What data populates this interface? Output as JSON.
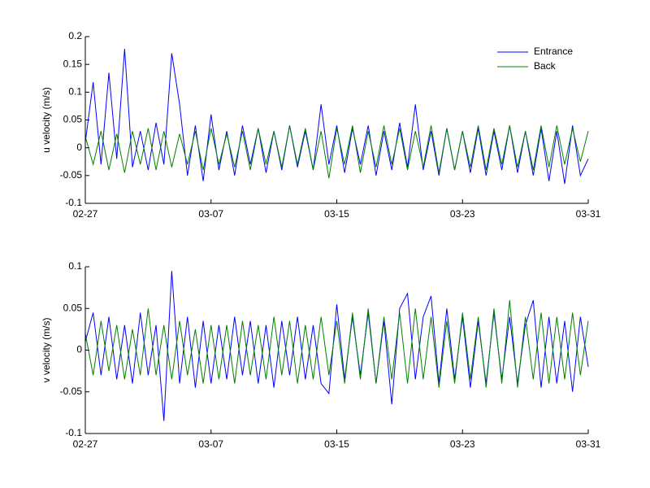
{
  "chart_data": [
    {
      "type": "line",
      "ylabel": "u velocity (m/s)",
      "x": [
        0,
        0.5,
        1,
        1.5,
        2,
        2.5,
        3,
        3.5,
        4,
        4.5,
        5,
        5.5,
        6,
        6.5,
        7,
        7.5,
        8,
        8.5,
        9,
        9.5,
        10,
        10.5,
        11,
        11.5,
        12,
        12.5,
        13,
        13.5,
        14,
        14.5,
        15,
        15.5,
        16,
        16.5,
        17,
        17.5,
        18,
        18.5,
        19,
        19.5,
        20,
        20.5,
        21,
        21.5,
        22,
        22.5,
        23,
        23.5,
        24,
        24.5,
        25,
        25.5,
        26,
        26.5,
        27,
        27.5,
        28,
        28.5,
        29,
        29.5,
        30,
        30.5,
        31,
        31.5,
        32
      ],
      "xlim": [
        0,
        32
      ],
      "xticks": [
        {
          "value": 0,
          "label": "02-27"
        },
        {
          "value": 8,
          "label": "03-07"
        },
        {
          "value": 16,
          "label": "03-15"
        },
        {
          "value": 24,
          "label": "03-23"
        },
        {
          "value": 32,
          "label": "03-31"
        }
      ],
      "ylim": [
        -0.1,
        0.2
      ],
      "yticks": [
        -0.1,
        -0.05,
        0,
        0.05,
        0.1,
        0.15,
        0.2
      ],
      "legend": "upper right",
      "series": [
        {
          "name": "Entrance",
          "color": "#0000ff",
          "values": [
            0.01,
            0.118,
            -0.03,
            0.135,
            -0.02,
            0.178,
            -0.035,
            0.03,
            -0.04,
            0.045,
            -0.03,
            0.17,
            0.078,
            -0.05,
            0.04,
            -0.06,
            0.06,
            -0.04,
            0.03,
            -0.05,
            0.04,
            -0.03,
            0.035,
            -0.045,
            0.03,
            -0.04,
            0.04,
            -0.035,
            0.03,
            -0.04,
            0.078,
            -0.03,
            0.04,
            -0.045,
            0.035,
            -0.03,
            0.04,
            -0.05,
            0.03,
            -0.04,
            0.045,
            -0.035,
            0.078,
            -0.04,
            0.03,
            -0.05,
            0.035,
            -0.04,
            0.03,
            -0.045,
            0.035,
            -0.05,
            0.03,
            -0.04,
            0.04,
            -0.045,
            0.03,
            -0.05,
            0.035,
            -0.06,
            0.03,
            -0.065,
            0.04,
            -0.05,
            -0.02
          ]
        },
        {
          "name": "Back",
          "color": "#008000",
          "values": [
            0.02,
            -0.03,
            0.03,
            -0.04,
            0.025,
            -0.045,
            0.03,
            -0.03,
            0.035,
            -0.04,
            0.03,
            -0.035,
            0.025,
            -0.03,
            0.03,
            -0.04,
            0.035,
            -0.03,
            0.025,
            -0.035,
            0.03,
            -0.04,
            0.035,
            -0.03,
            0.03,
            -0.035,
            0.04,
            -0.03,
            0.035,
            -0.04,
            0.03,
            -0.055,
            0.035,
            -0.03,
            0.04,
            -0.045,
            0.03,
            -0.035,
            0.04,
            -0.03,
            0.035,
            -0.04,
            0.03,
            -0.035,
            0.04,
            -0.045,
            0.035,
            -0.04,
            0.03,
            -0.035,
            0.04,
            -0.04,
            0.035,
            -0.03,
            0.04,
            -0.035,
            0.03,
            -0.04,
            0.04,
            -0.035,
            0.04,
            -0.03,
            0.035,
            -0.025,
            0.03
          ]
        }
      ]
    },
    {
      "type": "line",
      "ylabel": "v velocity (m/s)",
      "x": [
        0,
        0.5,
        1,
        1.5,
        2,
        2.5,
        3,
        3.5,
        4,
        4.5,
        5,
        5.5,
        6,
        6.5,
        7,
        7.5,
        8,
        8.5,
        9,
        9.5,
        10,
        10.5,
        11,
        11.5,
        12,
        12.5,
        13,
        13.5,
        14,
        14.5,
        15,
        15.5,
        16,
        16.5,
        17,
        17.5,
        18,
        18.5,
        19,
        19.5,
        20,
        20.5,
        21,
        21.5,
        22,
        22.5,
        23,
        23.5,
        24,
        24.5,
        25,
        25.5,
        26,
        26.5,
        27,
        27.5,
        28,
        28.5,
        29,
        29.5,
        30,
        30.5,
        31,
        31.5,
        32
      ],
      "xlim": [
        0,
        32
      ],
      "xticks": [
        {
          "value": 0,
          "label": "02-27"
        },
        {
          "value": 8,
          "label": "03-07"
        },
        {
          "value": 16,
          "label": "03-15"
        },
        {
          "value": 24,
          "label": "03-23"
        },
        {
          "value": 32,
          "label": "03-31"
        }
      ],
      "ylim": [
        -0.1,
        0.1
      ],
      "yticks": [
        -0.1,
        -0.05,
        0,
        0.05,
        0.1
      ],
      "series": [
        {
          "name": "Entrance",
          "color": "#0000ff",
          "values": [
            0.01,
            0.045,
            -0.03,
            0.04,
            -0.035,
            0.03,
            -0.04,
            0.045,
            -0.03,
            0.03,
            -0.085,
            0.095,
            -0.04,
            0.04,
            -0.045,
            0.035,
            -0.04,
            0.03,
            -0.035,
            0.04,
            -0.03,
            0.035,
            -0.04,
            0.03,
            -0.045,
            0.035,
            -0.03,
            0.04,
            -0.035,
            0.03,
            -0.04,
            -0.052,
            0.055,
            -0.035,
            0.04,
            -0.03,
            0.045,
            -0.04,
            0.035,
            -0.065,
            0.05,
            0.068,
            -0.035,
            0.04,
            0.065,
            -0.04,
            0.05,
            -0.035,
            0.04,
            -0.045,
            0.035,
            -0.04,
            0.045,
            -0.035,
            0.04,
            -0.04,
            0.03,
            0.06,
            -0.045,
            0.04,
            -0.04,
            0.035,
            -0.05,
            0.04,
            -0.02
          ]
        },
        {
          "name": "Back",
          "color": "#008000",
          "values": [
            0.02,
            -0.03,
            0.035,
            -0.025,
            0.03,
            -0.035,
            0.025,
            -0.03,
            0.05,
            -0.03,
            0.03,
            -0.035,
            0.035,
            -0.03,
            0.025,
            -0.04,
            0.03,
            -0.035,
            0.03,
            -0.04,
            0.035,
            -0.03,
            0.03,
            -0.035,
            0.04,
            -0.03,
            0.035,
            -0.04,
            0.03,
            -0.035,
            0.04,
            -0.03,
            0.035,
            -0.04,
            0.045,
            -0.035,
            0.05,
            -0.04,
            0.04,
            -0.035,
            0.045,
            -0.04,
            0.05,
            -0.035,
            0.04,
            -0.045,
            0.035,
            -0.04,
            0.045,
            -0.035,
            0.04,
            -0.045,
            0.05,
            -0.04,
            0.06,
            -0.045,
            0.04,
            -0.035,
            0.045,
            -0.04,
            0.04,
            -0.035,
            0.045,
            -0.03,
            0.035
          ]
        }
      ]
    }
  ]
}
